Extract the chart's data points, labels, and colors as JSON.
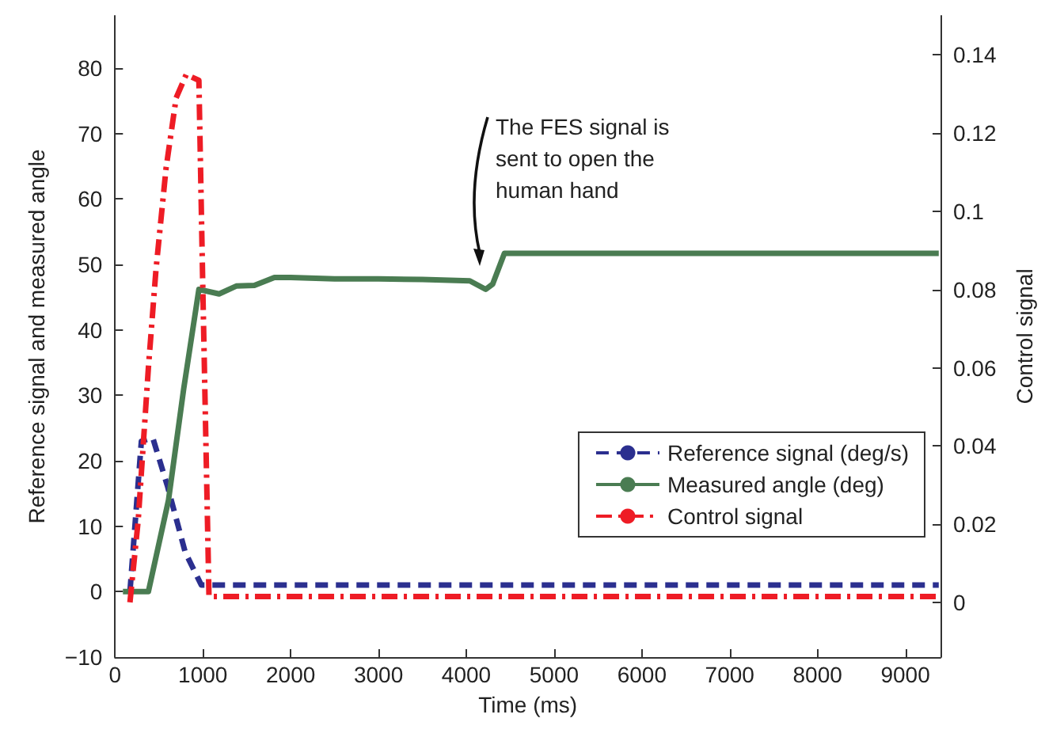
{
  "chart_data": {
    "type": "line",
    "xlabel": "Time (ms)",
    "ylabel": "Reference signal and measured angle",
    "y2label": "Control signal",
    "xlim": [
      0,
      9400
    ],
    "xticks": [
      0,
      1000,
      2000,
      3000,
      4000,
      5000,
      6000,
      7000,
      8000,
      9000
    ],
    "ylim": [
      -10,
      88
    ],
    "yticks": [
      -10,
      0,
      10,
      20,
      30,
      40,
      50,
      60,
      70,
      80
    ],
    "y2lim": [
      -0.014,
      0.15
    ],
    "y2ticks": [
      0,
      0.02,
      0.04,
      0.06,
      0.08,
      0.1,
      0.12,
      0.14
    ],
    "grid": false,
    "legend": "right",
    "marker": "none",
    "annotations": [
      "The FES signal is sent to open the human hand"
    ],
    "series": [
      {
        "name": "Reference signal (deg/s)",
        "color": "#2b2f8f",
        "line_style": "dashed",
        "x": [
          170,
          300,
          430,
          600,
          800,
          983,
          1100,
          9380
        ],
        "values": [
          0,
          23,
          23.5,
          16,
          6,
          1,
          1,
          1
        ]
      },
      {
        "name": "Measured angle (deg)",
        "color": "#4a7c52",
        "line_style": "solid",
        "x": [
          90,
          380,
          609,
          782,
          955,
          1185,
          1380,
          1587,
          1815,
          2000,
          2500,
          3000,
          3500,
          4040,
          4221,
          4300,
          4434,
          9380
        ],
        "values": [
          0,
          0,
          14,
          31,
          46.2,
          45.5,
          46.7,
          46.8,
          48,
          48,
          47.8,
          47.8,
          47.7,
          47.5,
          46.2,
          47,
          51.7,
          51.7
        ]
      },
      {
        "name": "Control signal",
        "color": "#ee1c25",
        "line_style": "dashdot",
        "axis": "y2",
        "x": [
          170,
          264,
          380,
          466,
          581,
          696,
          811,
          955,
          1000,
          1070,
          1200,
          9380
        ],
        "values": [
          0,
          0.021,
          0.06,
          0.085,
          0.111,
          0.129,
          0.135,
          0.1335,
          0.08,
          0.0015,
          0.0015,
          0.0015
        ]
      }
    ]
  }
}
